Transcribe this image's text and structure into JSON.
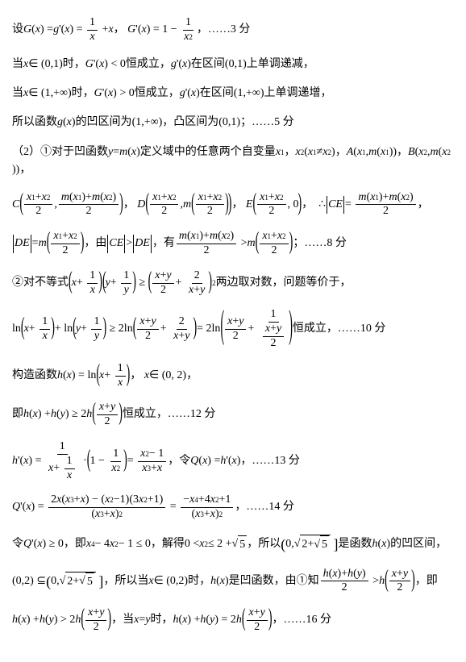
{
  "lines": {
    "l1_a": "设 ",
    "l1_b": "，",
    "l1_c": "，……3 分",
    "l2_a": "当 ",
    "l2_b": " 时，",
    "l2_c": " 恒成立，",
    "l2_d": " 在区间 ",
    "l2_e": " 上单调递减，",
    "l3_a": "当 ",
    "l3_b": " 时，",
    "l3_c": " 恒成立，",
    "l3_d": " 在区间 ",
    "l3_e": " 上单调递增，",
    "l4_a": "所以函数 ",
    "l4_b": " 的凹区间为 ",
    "l4_c": "，凸区间为 ",
    "l4_d": "；……5 分",
    "l5_a": "（2）①对于凹函数 ",
    "l5_b": " 定义域中的任意两个自变量 ",
    "l5_c": "，",
    "l5_d": "，",
    "l5_e": "，",
    "l5_f": "，",
    "l6_a": "，",
    "l6_b": "，",
    "l6_c": "，",
    "l6_d": "，",
    "l7_a": "，由 ",
    "l7_b": "，有 ",
    "l7_c": "；……8 分",
    "l8_a": "②对不等式 ",
    "l8_b": " 两边取对数，问题等价于，",
    "l9_a": " 恒成立，……10 分",
    "l10_a": "构造函数 ",
    "l10_b": "，",
    "l10_c": "，",
    "l11_a": "即 ",
    "l11_b": " 恒成立，……12 分",
    "l12_a": "，令 ",
    "l12_b": "，……13 分",
    "l13_a": "，……14 分",
    "l14_a": "令 ",
    "l14_b": "，即 ",
    "l14_c": "，解得 ",
    "l14_d": "，所以 ",
    "l14_e": " 是函数 ",
    "l14_f": " 的凹区间，",
    "l15_a": "，所以当 ",
    "l15_b": " 时，",
    "l15_c": " 是凹函数，由①知 ",
    "l15_d": "，即",
    "l16_a": "，当 ",
    "l16_b": " 时，",
    "l16_c": "，……16 分"
  },
  "math": {
    "Gx": "G(x) = g'(x) = ",
    "Gpx": "G'(x) = 1 − ",
    "x01": "x ∈ (0,1)",
    "Gplt0": "G'(x) < 0",
    "gpx": "g'(x)",
    "int01": "(0,1)",
    "x1inf": "x ∈ (1,+∞)",
    "Gpgt0": "G'(x) > 0",
    "int1inf": "(1,+∞)",
    "gx": "g(x)",
    "ymx": "y = m(x)",
    "x1": "x₁",
    "x2": "x₂ (x₁ ≠ x₂)",
    "A": "A(x₁, m(x₁))",
    "B": "B(x₂, m(x₂))",
    "therefore": "∴",
    "CE": "CE",
    "DE": "DE",
    "CEgtDE": "|CE| > |DE|",
    "ln": "ln",
    "hx": "h(x) = ln",
    "x02": "x ∈ (0, 2)",
    "hxhy": "h(x) + h(y) ≥ 2h",
    "hpx": "h'(x) = ",
    "Qx": "Q(x) = h'(x)",
    "Qpx": "Q'(x) = ",
    "Qpge0": "Q'(x) ≥ 0",
    "poly": "x⁴ − 4x² − 1 ≤ 0",
    "ineq": "0 < x² ≤ 2 + √5",
    "hx2": "h(x)",
    "subset": "(0,2) ⊆ ",
    "hxconcave": "h(x)",
    "hxhygt": "h(x) + h(y) > 2h",
    "xeqy": "x = y",
    "hxhyeq": "h(x) + h(y) = 2h"
  }
}
